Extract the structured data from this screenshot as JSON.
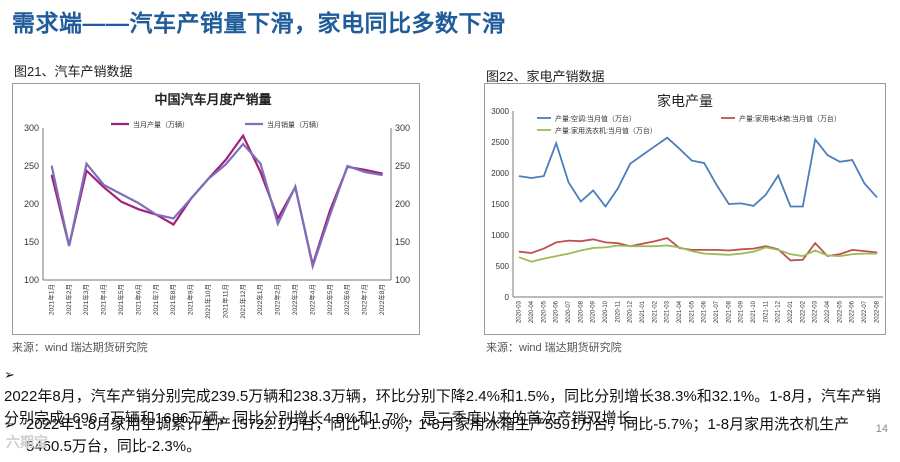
{
  "page": {
    "title": "需求端——汽车产销量下滑，家电同比多数下滑",
    "page_number": "14",
    "watermark": "六期宝"
  },
  "left_figure": {
    "label": "图21、汽车产销数据",
    "source": "来源：wind   瑞达期货研究院"
  },
  "right_figure": {
    "label": "图22、家电产销数据",
    "source": "来源：wind   瑞达期货研究院"
  },
  "bullets": [
    {
      "line1": "2022年8月，汽车产销分别完成239.5万辆和238.3万辆，环比分别下降2.4%和1.5%，同比分别增长38.3%和32.1%。1-8月，汽车产销",
      "line2": "分别完成1696.7万辆和1686万辆，同比分别增长4.8%和1.7%，是二季度以来的首次产销双增长。"
    },
    {
      "line1": "2022年1-8月家用空调累计生产15722.1万台，同比+1.9%；1-8月家用冰箱生产5591万台，同比-5.7%；1-8月家用洗衣机生产",
      "line2": "5460.5万台，同比-2.3%。"
    }
  ],
  "colors": {
    "title": "#1f5c99",
    "car_production": "#a0227a",
    "car_sales": "#7d6fb8",
    "ac": "#4a7ebb",
    "fridge": "#c0504d",
    "washer": "#9bbb59"
  },
  "chart_data": [
    {
      "type": "line",
      "title": "中国汽车月度产销量",
      "categories": [
        "2021年1月",
        "2021年2月",
        "2021年3月",
        "2021年4月",
        "2021年5月",
        "2021年6月",
        "2021年7月",
        "2021年8月",
        "2021年9月",
        "2021年10月",
        "2021年11月",
        "2021年12月",
        "2022年1月",
        "2022年2月",
        "2022年3月",
        "2022年4月",
        "2022年5月",
        "2022年6月",
        "2022年7月",
        "2022年8月"
      ],
      "series": [
        {
          "name": "当月产量（万辆）",
          "values": [
            238,
            145,
            244,
            222,
            203,
            193,
            186,
            173,
            207,
            233,
            258,
            290,
            242,
            181,
            222,
            120,
            192,
            249,
            245,
            240
          ]
        },
        {
          "name": "当月销量（万辆）",
          "values": [
            250,
            145,
            253,
            225,
            213,
            201,
            186,
            181,
            207,
            233,
            252,
            279,
            253,
            174,
            223,
            118,
            186,
            250,
            242,
            238
          ]
        }
      ],
      "ylim": [
        100,
        300
      ],
      "yticks": [
        100,
        150,
        200,
        250,
        300
      ],
      "y2ticks": [
        100,
        150,
        200,
        250,
        300
      ],
      "xlabel": "",
      "ylabel": ""
    },
    {
      "type": "line",
      "title": "家电产量",
      "categories": [
        "2020-03",
        "2020-04",
        "2020-05",
        "2020-06",
        "2020-07",
        "2020-08",
        "2020-09",
        "2020-10",
        "2020-11",
        "2020-12",
        "2021-01",
        "2021-02",
        "2021-03",
        "2021-04",
        "2021-05",
        "2021-06",
        "2021-07",
        "2021-08",
        "2021-09",
        "2021-10",
        "2021-11",
        "2021-12",
        "2022-01",
        "2022-02",
        "2022-03",
        "2022-04",
        "2022-05",
        "2022-06",
        "2022-07",
        "2022-08"
      ],
      "series": [
        {
          "name": "产量:空调:当月值（万台）",
          "values": [
            1950,
            1920,
            1950,
            2480,
            1850,
            1540,
            1720,
            1460,
            1750,
            2150,
            2290,
            2430,
            2570,
            2390,
            2200,
            2160,
            1810,
            1500,
            1510,
            1470,
            1650,
            1960,
            1460,
            1460,
            2540,
            2290,
            2180,
            2210,
            1830,
            1610
          ]
        },
        {
          "name": "产量:家用电冰箱:当月值（万台）",
          "values": [
            730,
            710,
            780,
            880,
            910,
            900,
            930,
            880,
            870,
            820,
            860,
            900,
            950,
            790,
            760,
            760,
            760,
            750,
            770,
            780,
            820,
            770,
            590,
            600,
            870,
            660,
            690,
            760,
            740,
            720
          ]
        },
        {
          "name": "产量:家用洗衣机:当月值（万台）",
          "values": [
            640,
            570,
            620,
            660,
            700,
            750,
            790,
            800,
            830,
            820,
            820,
            820,
            830,
            800,
            740,
            700,
            690,
            680,
            700,
            730,
            800,
            760,
            690,
            660,
            750,
            670,
            660,
            690,
            700,
            700
          ]
        }
      ],
      "ylim": [
        0,
        3000
      ],
      "yticks": [
        0,
        500,
        1000,
        1500,
        2000,
        2500,
        3000
      ],
      "xlabel": "",
      "ylabel": ""
    }
  ]
}
